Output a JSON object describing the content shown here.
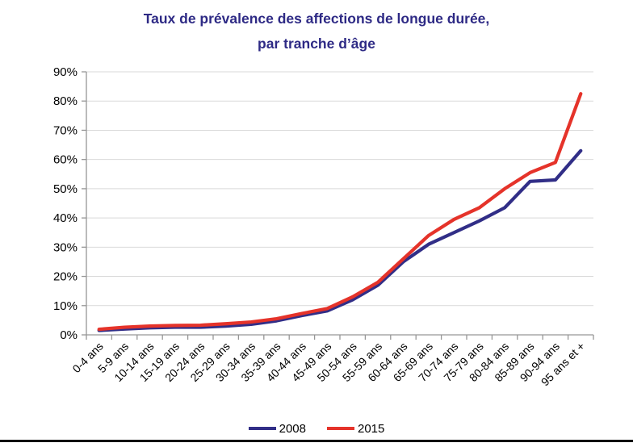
{
  "title": {
    "line1": "Taux de prévalence des affections de longue durée,",
    "line2": "par tranche d’âge"
  },
  "colors": {
    "title": "#2E2A85",
    "series_2008": "#312E87",
    "series_2015": "#E5332A",
    "gridline": "#D9D9D9",
    "axis": "#969696",
    "tick_label": "#000000",
    "footer_rule": "#000000"
  },
  "chart_data": {
    "type": "line",
    "title": "Taux de prévalence des affections de longue durée, par tranche d’âge",
    "xlabel": "",
    "ylabel": "",
    "categories": [
      "0-4 ans",
      "5-9 ans",
      "10-14 ans",
      "15-19 ans",
      "20-24 ans",
      "25-29 ans",
      "30-34 ans",
      "35-39 ans",
      "40-44 ans",
      "45-49 ans",
      "50-54 ans",
      "55-59 ans",
      "60-64 ans",
      "65-69 ans",
      "70-74 ans",
      "75-79 ans",
      "80-84 ans",
      "85-89 ans",
      "90-94 ans",
      "95 ans et +"
    ],
    "series": [
      {
        "name": "2008",
        "color": "#312E87",
        "values": [
          1.5,
          2.0,
          2.4,
          2.6,
          2.6,
          3.0,
          3.6,
          4.8,
          6.6,
          8.2,
          12.0,
          17.0,
          25.0,
          31.0,
          35.0,
          39.0,
          43.5,
          52.5,
          53.0,
          63.0
        ]
      },
      {
        "name": "2015",
        "color": "#E5332A",
        "values": [
          1.9,
          2.6,
          3.0,
          3.2,
          3.3,
          3.8,
          4.4,
          5.5,
          7.3,
          9.0,
          13.0,
          18.0,
          26.0,
          34.0,
          39.5,
          43.5,
          50.0,
          55.5,
          59.0,
          82.5
        ]
      }
    ],
    "ylim": [
      0,
      90
    ],
    "ytick_step": 10,
    "ytick_labels": [
      "0%",
      "10%",
      "20%",
      "30%",
      "40%",
      "50%",
      "60%",
      "70%",
      "80%",
      "90%"
    ],
    "grid": "horizontal",
    "legend_position": "bottom"
  }
}
